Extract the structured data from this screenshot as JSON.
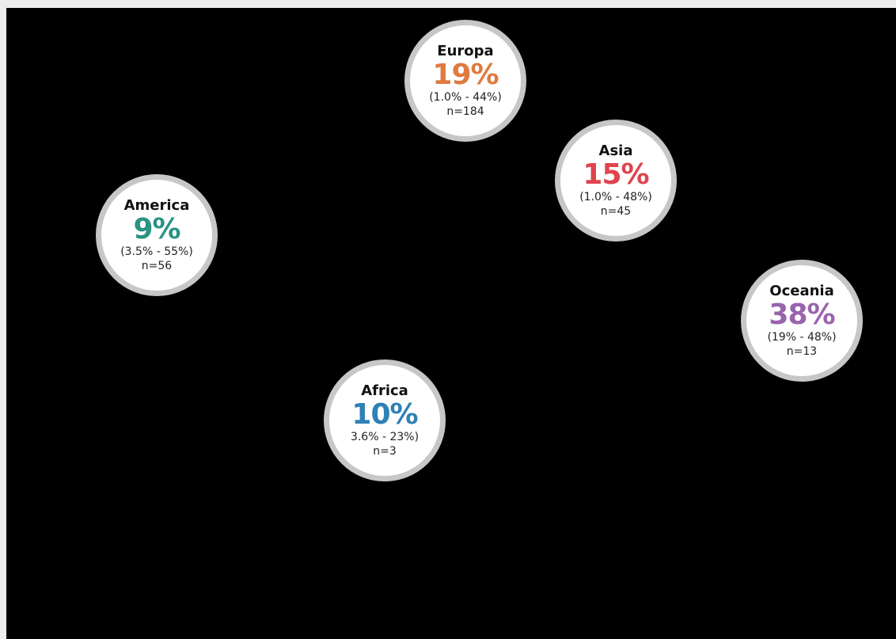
{
  "colors": {
    "background": "#000000",
    "bubble_fill": "#ffffff",
    "bubble_border": "#c7c7c7"
  },
  "regions": {
    "europa": {
      "name": "Europa",
      "pct": "19%",
      "ci": "(1.0% - 44%)",
      "n": "n=184",
      "color": "#e07a3f"
    },
    "asia": {
      "name": "Asia",
      "pct": "15%",
      "ci": "(1.0% - 48%)",
      "n": "n=45",
      "color": "#e0434c"
    },
    "america": {
      "name": "America",
      "pct": "9%",
      "ci": "(3.5% - 55%)",
      "n": "n=56",
      "color": "#2a9384"
    },
    "oceania": {
      "name": "Oceania",
      "pct": "38%",
      "ci": "(19% - 48%)",
      "n": "n=13",
      "color": "#9a63ad"
    },
    "africa": {
      "name": "Africa",
      "pct": "10%",
      "ci": "3.6% - 23%)",
      "n": "n=3",
      "color": "#2f80b5"
    }
  }
}
